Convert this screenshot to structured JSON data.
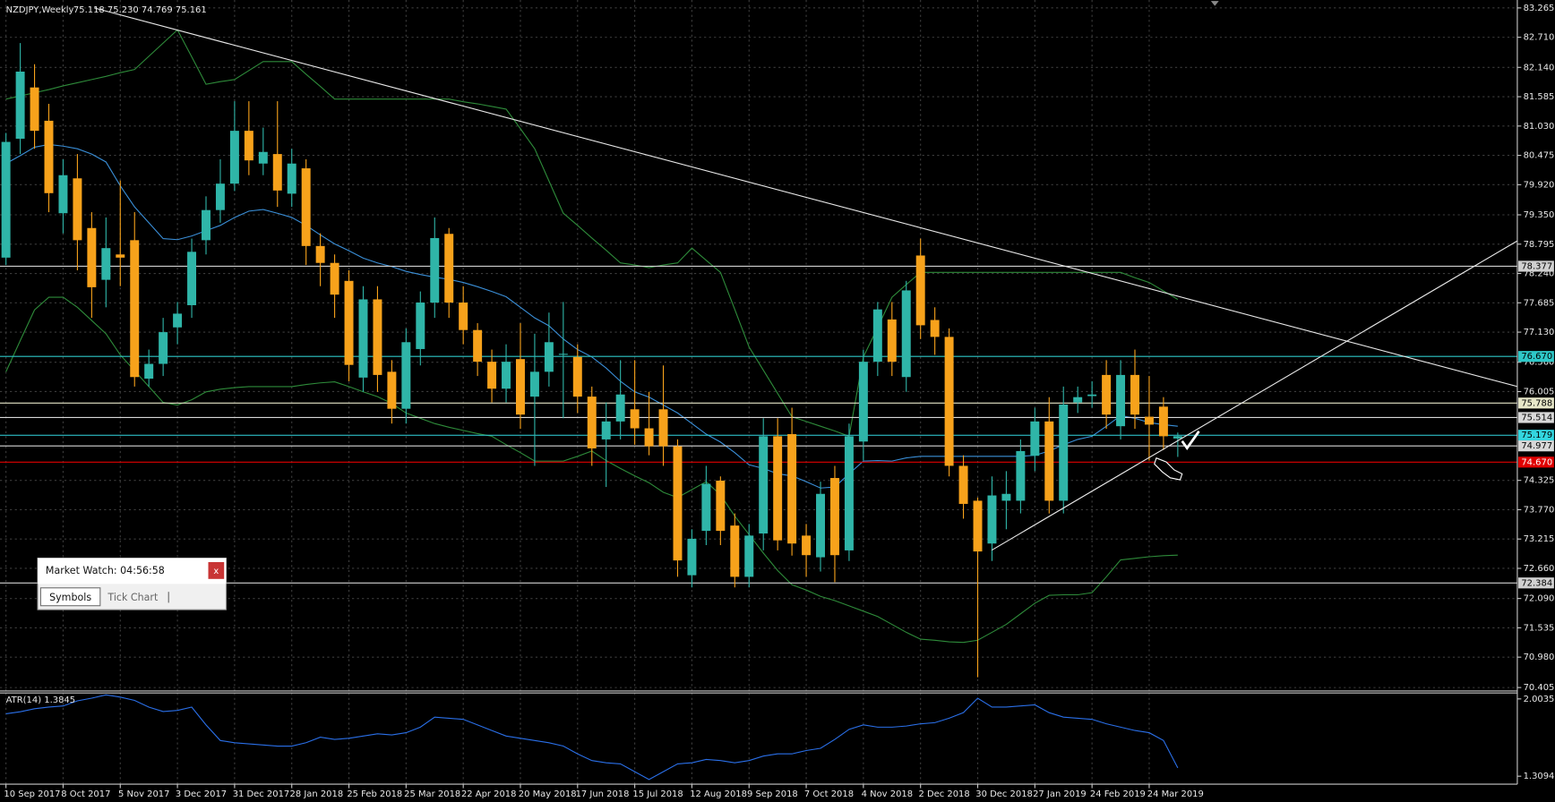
{
  "header": {
    "symbol": "NZDJPY,Weekly",
    "quote": "75.118 75.230 74.769 75.161"
  },
  "market_watch": {
    "title": "Market Watch: 04:56:58",
    "close": "x",
    "tabs": [
      "Symbols",
      "Tick Chart"
    ]
  },
  "chart_data": {
    "type": "candlestick",
    "bull_color": "#2fb5a8",
    "bear_color": "#f7a21b",
    "x": [
      "10 Sep 2017",
      null,
      null,
      null,
      "8 Oct 2017",
      null,
      null,
      null,
      "5 Nov 2017",
      null,
      null,
      null,
      "3 Dec 2017",
      null,
      null,
      null,
      "31 Dec 2017",
      null,
      null,
      null,
      "28 Jan 2018",
      null,
      null,
      null,
      "25 Feb 2018",
      null,
      null,
      null,
      "25 Mar 2018",
      null,
      null,
      null,
      "22 Apr 2018",
      null,
      null,
      null,
      "20 May 2018",
      null,
      null,
      null,
      "17 Jun 2018",
      null,
      null,
      null,
      "15 Jul 2018",
      null,
      null,
      null,
      "12 Aug 2018",
      null,
      null,
      null,
      "9 Sep 2018",
      null,
      null,
      null,
      "7 Oct 2018",
      null,
      null,
      null,
      "4 Nov 2018",
      null,
      null,
      null,
      "2 Dec 2018",
      null,
      null,
      null,
      "30 Dec 2018",
      null,
      null,
      null,
      "27 Jan 2019",
      null,
      null,
      null,
      "24 Feb 2019",
      null,
      null,
      null,
      "24 Mar 2019",
      null,
      null
    ],
    "open": [
      78.54,
      80.79,
      81.76,
      81.13,
      79.38,
      80.04,
      79.1,
      78.12,
      78.6,
      78.87,
      76.25,
      76.53,
      77.22,
      77.64,
      78.87,
      79.44,
      79.94,
      80.94,
      80.32,
      80.5,
      79.75,
      80.23,
      78.76,
      78.44,
      78.1,
      76.27,
      77.75,
      76.38,
      75.68,
      76.81,
      77.69,
      78.99,
      77.69,
      77.17,
      76.57,
      76.06,
      76.62,
      75.91,
      76.38,
      76.72,
      76.66,
      75.91,
      75.1,
      75.44,
      75.67,
      75.31,
      75.67,
      74.97,
      72.53,
      73.37,
      74.32,
      73.47,
      72.5,
      73.32,
      75.16,
      75.2,
      73.28,
      72.87,
      74.37,
      73.0,
      75.06,
      76.57,
      77.37,
      76.28,
      78.58,
      77.36,
      77.04,
      74.6,
      73.94,
      73.13,
      73.94,
      73.94,
      74.79,
      75.44,
      73.94,
      75.8,
      75.92,
      76.32,
      75.35,
      76.32,
      75.53,
      75.72,
      75.118
    ],
    "high": [
      80.9,
      82.6,
      82.2,
      81.45,
      80.4,
      80.5,
      79.4,
      79.3,
      80.0,
      79.4,
      76.8,
      77.4,
      77.7,
      78.9,
      79.7,
      80.4,
      81.5,
      81.5,
      81.0,
      81.5,
      80.6,
      80.4,
      79.0,
      78.6,
      78.3,
      78.0,
      78.0,
      76.6,
      77.2,
      77.9,
      79.3,
      79.1,
      78.0,
      77.3,
      76.8,
      76.9,
      77.3,
      77.1,
      77.5,
      77.7,
      76.9,
      76.1,
      75.8,
      76.6,
      76.6,
      76.0,
      76.5,
      75.1,
      73.4,
      74.6,
      74.4,
      73.7,
      73.5,
      75.5,
      75.5,
      75.7,
      73.5,
      74.3,
      74.6,
      75.4,
      76.8,
      77.7,
      77.7,
      78.1,
      78.9,
      77.6,
      77.2,
      74.8,
      74.0,
      74.4,
      74.5,
      75.1,
      75.7,
      75.9,
      76.1,
      76.1,
      76.2,
      76.6,
      76.6,
      76.8,
      76.3,
      75.9,
      75.23
    ],
    "low": [
      78.4,
      80.5,
      80.6,
      79.4,
      79.0,
      78.3,
      77.4,
      77.6,
      78.0,
      76.1,
      76.1,
      76.3,
      76.9,
      77.4,
      78.6,
      79.2,
      79.8,
      80.1,
      80.1,
      79.5,
      79.5,
      78.4,
      78.0,
      77.4,
      76.2,
      76.0,
      76.0,
      75.4,
      75.4,
      76.5,
      77.4,
      77.4,
      76.9,
      76.3,
      75.8,
      75.8,
      75.3,
      74.6,
      76.1,
      75.5,
      75.6,
      74.6,
      74.2,
      75.1,
      75.0,
      74.8,
      74.6,
      72.5,
      72.3,
      73.1,
      73.1,
      72.3,
      72.3,
      73.0,
      73.0,
      72.9,
      72.5,
      72.6,
      72.4,
      72.8,
      74.7,
      76.3,
      76.3,
      76.0,
      77.0,
      76.7,
      74.4,
      73.6,
      70.6,
      72.8,
      73.4,
      73.7,
      74.5,
      73.7,
      73.7,
      75.6,
      75.7,
      75.3,
      75.1,
      75.3,
      74.7,
      74.9,
      74.769
    ],
    "close": [
      80.73,
      82.06,
      80.94,
      79.76,
      80.1,
      78.87,
      77.98,
      78.72,
      78.54,
      76.28,
      76.53,
      77.13,
      77.48,
      78.65,
      79.44,
      79.94,
      80.94,
      80.38,
      80.54,
      79.81,
      80.32,
      78.76,
      78.44,
      77.84,
      76.51,
      77.75,
      76.32,
      75.68,
      76.94,
      77.69,
      78.91,
      77.69,
      77.17,
      76.57,
      76.06,
      76.57,
      75.57,
      76.38,
      76.94,
      76.72,
      75.91,
      74.93,
      75.44,
      75.95,
      75.31,
      74.97,
      74.97,
      72.81,
      73.22,
      74.26,
      73.37,
      72.5,
      73.28,
      75.16,
      73.19,
      73.13,
      72.91,
      74.07,
      72.91,
      75.16,
      76.57,
      77.56,
      76.57,
      77.92,
      77.26,
      77.04,
      74.6,
      73.88,
      72.98,
      74.04,
      74.07,
      74.88,
      75.44,
      73.94,
      75.76,
      75.9,
      75.95,
      75.57,
      76.32,
      75.57,
      75.38,
      75.16,
      75.161
    ],
    "overlays": [
      {
        "color": "#2e8b3a",
        "values": [
          81.54,
          81.6,
          81.66,
          81.72,
          81.79,
          81.85,
          81.91,
          81.97,
          82.04,
          82.1,
          82.35,
          82.6,
          82.85,
          82.34,
          81.82,
          81.87,
          81.91,
          82.08,
          82.25,
          82.25,
          82.25,
          82.01,
          81.78,
          81.54,
          81.54,
          81.54,
          81.54,
          81.54,
          81.54,
          81.54,
          81.54,
          81.54,
          81.49,
          81.45,
          81.4,
          81.35,
          80.98,
          80.6,
          79.99,
          79.38,
          79.15,
          78.91,
          78.68,
          78.44,
          78.4,
          78.35,
          78.4,
          78.44,
          78.72,
          78.49,
          78.26,
          77.56,
          76.85,
          76.41,
          75.97,
          75.53,
          75.44,
          75.35,
          75.26,
          75.16,
          76.66,
          77.22,
          77.79,
          78.03,
          78.26,
          78.26,
          78.26,
          78.26,
          78.26,
          78.26,
          78.26,
          78.26,
          78.26,
          78.26,
          78.26,
          78.26,
          78.26,
          78.26,
          78.26,
          78.16,
          78.07,
          77.91,
          77.75
        ]
      },
      {
        "color": "#2e8b3a",
        "values": [
          76.38,
          76.97,
          77.55,
          77.79,
          77.79,
          77.6,
          77.35,
          77.1,
          76.7,
          76.4,
          76.1,
          75.8,
          75.75,
          75.85,
          76.0,
          76.05,
          76.08,
          76.1,
          76.1,
          76.1,
          76.1,
          76.14,
          76.17,
          76.19,
          76.1,
          76.0,
          75.91,
          75.78,
          75.6,
          75.5,
          75.4,
          75.33,
          75.27,
          75.21,
          75.16,
          75.0,
          74.85,
          74.69,
          74.69,
          74.69,
          74.78,
          74.88,
          74.7,
          74.55,
          74.41,
          74.28,
          74.1,
          74.0,
          74.15,
          74.3,
          74.05,
          73.65,
          73.3,
          72.95,
          72.62,
          72.35,
          72.25,
          72.13,
          72.05,
          71.95,
          71.85,
          71.75,
          71.6,
          71.45,
          71.32,
          71.3,
          71.27,
          71.26,
          71.3,
          71.45,
          71.6,
          71.8,
          72.0,
          72.15,
          72.16,
          72.16,
          72.2,
          72.5,
          72.82,
          72.85,
          72.88,
          72.9,
          72.91
        ]
      },
      {
        "color": "#3a8fd8",
        "values": [
          80.32,
          80.47,
          80.63,
          80.68,
          80.65,
          80.6,
          80.5,
          80.35,
          79.9,
          79.5,
          79.2,
          78.9,
          78.88,
          78.95,
          79.05,
          79.15,
          79.3,
          79.42,
          79.45,
          79.38,
          79.3,
          79.15,
          78.97,
          78.8,
          78.67,
          78.53,
          78.44,
          78.37,
          78.28,
          78.22,
          78.17,
          78.13,
          78.07,
          77.99,
          77.9,
          77.8,
          77.6,
          77.4,
          77.25,
          77.0,
          76.8,
          76.66,
          76.45,
          76.2,
          76.0,
          75.9,
          75.75,
          75.6,
          75.4,
          75.2,
          75.05,
          74.85,
          74.62,
          74.55,
          74.45,
          74.41,
          74.3,
          74.18,
          74.2,
          74.45,
          74.69,
          74.7,
          74.69,
          74.75,
          74.78,
          74.78,
          74.78,
          74.78,
          74.78,
          74.78,
          74.78,
          74.78,
          74.8,
          74.88,
          75.0,
          75.1,
          75.16,
          75.35,
          75.55,
          75.5,
          75.42,
          75.38,
          75.35
        ]
      }
    ],
    "levels": [
      {
        "value": 78.377,
        "color": "#d0d0d0"
      },
      {
        "value": 76.67,
        "label": "76.670",
        "color": "#2ec8c8"
      },
      {
        "value": 75.788,
        "color": "#e6e6c8"
      },
      {
        "value": 75.514,
        "color": "#d8d8d8"
      },
      {
        "value": 75.179,
        "color": "#33d6e0"
      },
      {
        "value": 74.977,
        "color": "#d8d8d8"
      },
      {
        "value": 74.67,
        "label": "74.670",
        "color": "#e00000"
      },
      {
        "value": 72.384,
        "color": "#d0d0d0"
      }
    ],
    "ylim": [
      70.34,
      83.415
    ],
    "yticks": [
      83.265,
      {
        "value": 82.71,
        "label": "82.710"
      },
      {
        "value": 82.14,
        "label": "82.140"
      },
      81.585,
      {
        "value": 81.03,
        "label": "81.030"
      },
      80.475,
      {
        "value": 79.92,
        "label": "79.920"
      },
      {
        "value": 79.35,
        "label": "79.350"
      },
      78.795,
      {
        "value": 78.24,
        "label": "78.240"
      },
      77.685,
      {
        "value": 77.13,
        "label": "77.130"
      },
      {
        "value": 76.56,
        "label": "76.560"
      },
      76.005,
      74.325,
      {
        "value": 73.77,
        "label": "73.770"
      },
      73.215,
      {
        "value": 72.66,
        "label": "72.660"
      },
      {
        "value": 72.09,
        "label": "72.090"
      },
      71.535,
      {
        "value": 70.98,
        "label": "70.980"
      },
      70.405
    ],
    "grid": true,
    "atr": {
      "label": "ATR(14) 1.3845",
      "color": "#2a6fe8",
      "values": [
        1.87,
        1.888,
        1.915,
        1.93,
        1.94,
        1.986,
        2.01,
        2.04,
        2.02,
        1.99,
        1.93,
        1.89,
        1.9,
        1.93,
        1.77,
        1.63,
        1.61,
        1.6,
        1.59,
        1.58,
        1.58,
        1.61,
        1.66,
        1.64,
        1.65,
        1.67,
        1.69,
        1.68,
        1.7,
        1.75,
        1.84,
        1.83,
        1.82,
        1.77,
        1.72,
        1.67,
        1.65,
        1.63,
        1.61,
        1.58,
        1.51,
        1.45,
        1.43,
        1.42,
        1.35,
        1.28,
        1.35,
        1.42,
        1.43,
        1.46,
        1.45,
        1.43,
        1.45,
        1.49,
        1.51,
        1.51,
        1.54,
        1.56,
        1.64,
        1.73,
        1.77,
        1.75,
        1.75,
        1.76,
        1.78,
        1.79,
        1.83,
        1.88,
        2.01,
        1.93,
        1.93,
        1.94,
        1.95,
        1.88,
        1.84,
        1.83,
        1.82,
        1.78,
        1.75,
        1.72,
        1.7,
        1.63,
        1.3845
      ],
      "ylim": [
        1.238,
        2.057
      ],
      "yticks": [
        2.0035,
        1.3094
      ]
    }
  }
}
